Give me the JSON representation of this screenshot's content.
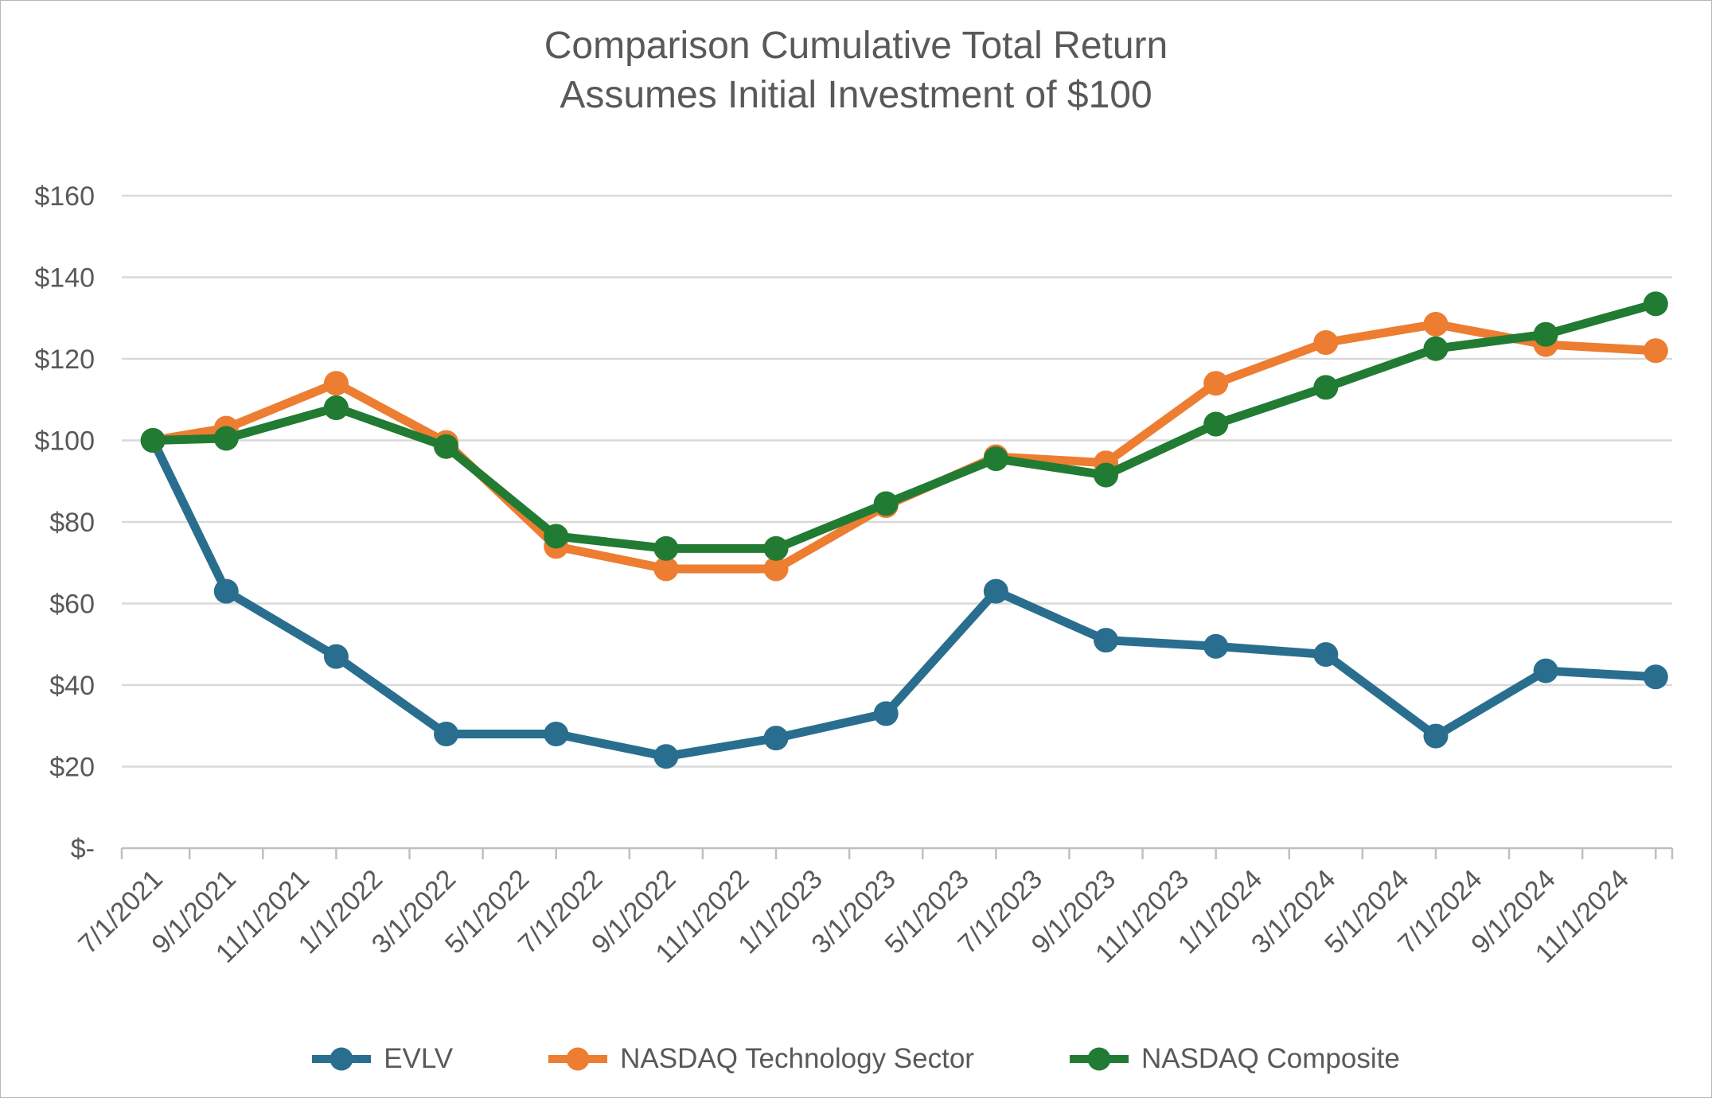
{
  "title": {
    "line1": "Comparison Cumulative Total Return",
    "line2": "Assumes Initial Investment of $100"
  },
  "colors": {
    "grid": "#D9D9D9",
    "axis": "#BFBFBF",
    "text": "#595959",
    "background": "#FFFFFF"
  },
  "chart_data": {
    "type": "line",
    "title": "Comparison Cumulative Total Return — Assumes Initial Investment of $100",
    "xlabel": "",
    "ylabel": "",
    "ylim": [
      0,
      160
    ],
    "grid": "horizontal",
    "legend_position": "bottom",
    "x_tick_labels": [
      "7/1/2021",
      "9/1/2021",
      "11/1/2021",
      "1/1/2022",
      "3/1/2022",
      "5/1/2022",
      "7/1/2022",
      "9/1/2022",
      "11/1/2022",
      "1/1/2023",
      "3/1/2023",
      "5/1/2023",
      "7/1/2023",
      "9/1/2023",
      "11/1/2023",
      "1/1/2024",
      "3/1/2024",
      "5/1/2024",
      "7/1/2024",
      "9/1/2024",
      "11/1/2024"
    ],
    "x_tick_label_month_offsets": [
      0,
      2,
      4,
      6,
      8,
      10,
      12,
      14,
      16,
      18,
      20,
      22,
      24,
      26,
      28,
      30,
      32,
      34,
      36,
      38,
      40
    ],
    "point_dates": [
      "7/1/2021",
      "9/1/2021",
      "12/1/2021",
      "3/1/2022",
      "6/1/2022",
      "9/1/2022",
      "12/1/2022",
      "3/1/2023",
      "6/1/2023",
      "9/1/2023",
      "12/1/2023",
      "3/1/2024",
      "6/1/2024",
      "9/1/2024",
      "12/1/2024"
    ],
    "point_month_offsets": [
      0,
      2,
      5,
      8,
      11,
      14,
      17,
      20,
      23,
      26,
      29,
      32,
      35,
      38,
      41
    ],
    "y_ticks": [
      {
        "value": 160,
        "label": "$160"
      },
      {
        "value": 140,
        "label": "$140"
      },
      {
        "value": 120,
        "label": "$120"
      },
      {
        "value": 100,
        "label": "$100"
      },
      {
        "value": 80,
        "label": "$80"
      },
      {
        "value": 60,
        "label": "$60"
      },
      {
        "value": 40,
        "label": "$40"
      },
      {
        "value": 20,
        "label": "$20"
      },
      {
        "value": 0,
        "label": "$-"
      }
    ],
    "series": [
      {
        "name": "EVLV",
        "color": "#2A6E8F",
        "values": [
          100,
          63,
          47,
          28,
          28,
          22.5,
          27,
          33,
          63,
          51,
          49.5,
          47.5,
          27.5,
          43.5,
          42
        ]
      },
      {
        "name": "NASDAQ Technology Sector",
        "color": "#ED7D31",
        "values": [
          100,
          103,
          114,
          99.5,
          74,
          68.5,
          68.5,
          84,
          96,
          94.5,
          114,
          124,
          128.5,
          123.5,
          122
        ]
      },
      {
        "name": "NASDAQ Composite",
        "color": "#217B33",
        "values": [
          100,
          100.5,
          108,
          98.5,
          76.5,
          73.5,
          73.5,
          84.5,
          95.5,
          91.5,
          104,
          113,
          122.5,
          126,
          133.5
        ]
      }
    ]
  }
}
